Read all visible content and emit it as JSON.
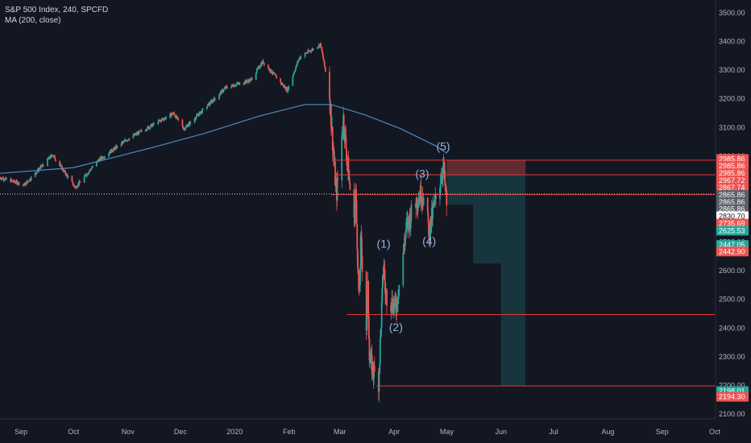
{
  "header": {
    "symbol_line": "S&P 500 Index, 240, SPCFD",
    "indicator_line": "MA (200, close)"
  },
  "chart_data": {
    "type": "candlestick",
    "title": "S&P 500 Index, 240, SPCFD",
    "indicator": "MA (200, close)",
    "x_ticks": [
      "Sep",
      "Oct",
      "Nov",
      "Dec",
      "2020",
      "Feb",
      "Mar",
      "Apr",
      "May",
      "Jun",
      "Jul",
      "Aug",
      "Sep",
      "Oct"
    ],
    "y_ticks": [
      3500,
      3400,
      3300,
      3200,
      3100,
      3000,
      2900,
      2800,
      2700,
      2600,
      2500,
      2400,
      2300,
      2200,
      2100
    ],
    "y_tick_labels": [
      "3500.00",
      "3400.00",
      "3300.00",
      "3200.00",
      "3100.00",
      "3000.00",
      "2900.00",
      "2800.00",
      "2700.00",
      "2600.00",
      "2500.00",
      "2400.00",
      "2300.00",
      "2200.00",
      "2100.00"
    ],
    "ylim": [
      2090,
      3520
    ],
    "price_path_anchors": [
      [
        "2019-08-20",
        2925
      ],
      [
        "2019-09-03",
        2900
      ],
      [
        "2019-09-19",
        3005
      ],
      [
        "2019-10-02",
        2890
      ],
      [
        "2019-10-15",
        2985
      ],
      [
        "2019-11-01",
        3060
      ],
      [
        "2019-11-27",
        3150
      ],
      [
        "2019-12-03",
        3095
      ],
      [
        "2019-12-27",
        3240
      ],
      [
        "2020-01-10",
        3265
      ],
      [
        "2020-01-17",
        3330
      ],
      [
        "2020-01-31",
        3230
      ],
      [
        "2020-02-07",
        3345
      ],
      [
        "2020-02-19",
        3390
      ],
      [
        "2020-02-24",
        3225
      ],
      [
        "2020-02-28",
        2860
      ],
      [
        "2020-03-03",
        3130
      ],
      [
        "2020-03-09",
        2745
      ],
      [
        "2020-03-10",
        2880
      ],
      [
        "2020-03-12",
        2480
      ],
      [
        "2020-03-13",
        2710
      ],
      [
        "2020-03-16",
        2390
      ],
      [
        "2020-03-17",
        2530
      ],
      [
        "2020-03-18",
        2290
      ],
      [
        "2020-03-23",
        2198
      ],
      [
        "2020-03-26",
        2630
      ],
      [
        "2020-03-27",
        2520
      ],
      [
        "2020-04-02",
        2470
      ],
      [
        "2020-04-08",
        2750
      ],
      [
        "2020-04-14",
        2850
      ],
      [
        "2020-04-17",
        2875
      ],
      [
        "2020-04-21",
        2735
      ],
      [
        "2020-04-23",
        2800
      ],
      [
        "2020-04-29",
        2965
      ],
      [
        "2020-05-01",
        2830
      ]
    ],
    "ma200_anchors": [
      [
        "2019-08-20",
        2940
      ],
      [
        "2019-10-01",
        2960
      ],
      [
        "2019-11-15",
        3030
      ],
      [
        "2019-12-15",
        3080
      ],
      [
        "2020-01-15",
        3140
      ],
      [
        "2020-02-10",
        3180
      ],
      [
        "2020-02-25",
        3180
      ],
      [
        "2020-03-15",
        3145
      ],
      [
        "2020-04-05",
        3095
      ],
      [
        "2020-04-25",
        3035
      ],
      [
        "2020-05-01",
        3010
      ]
    ],
    "wave_labels": [
      {
        "text": "(1)",
        "date": "2020-03-26",
        "price": 2680
      },
      {
        "text": "(2)",
        "date": "2020-04-02",
        "price": 2390
      },
      {
        "text": "(3)",
        "date": "2020-04-17",
        "price": 2925
      },
      {
        "text": "(4)",
        "date": "2020-04-21",
        "price": 2690
      },
      {
        "text": "(5)",
        "date": "2020-04-29",
        "price": 3020
      }
    ],
    "horizontal_lines": [
      {
        "price": 2985.86,
        "from": "2020-02-28"
      },
      {
        "price": 2935,
        "from": "2020-02-28"
      },
      {
        "price": 2865.86,
        "from": "2020-02-25"
      },
      {
        "price": 2447.05,
        "from": "2020-03-05"
      },
      {
        "price": 2198.01,
        "from": "2020-03-22"
      }
    ],
    "last_price": 2867.74,
    "risk_zone": {
      "from": "2020-05-01",
      "to": "2020-06-15",
      "top": 2985.86,
      "bottom": 2935
    },
    "reward_zones": [
      {
        "from": "2020-05-01",
        "to": "2020-05-16",
        "top": 2935,
        "bottom": 2830.7
      },
      {
        "from": "2020-05-16",
        "to": "2020-06-01",
        "top": 2935,
        "bottom": 2625.53
      },
      {
        "from": "2020-06-01",
        "to": "2020-06-15",
        "top": 2935,
        "bottom": 2198.01
      }
    ],
    "price_labels": [
      {
        "text": "2985.86",
        "color": "#ef5350",
        "price": 2990
      },
      {
        "text": "2985.86",
        "color": "#ef5350",
        "price": 2966
      },
      {
        "text": "2985.86",
        "color": "#ef5350",
        "price": 2941
      },
      {
        "text": "2967.72",
        "color": "#ef5350",
        "price": 2915
      },
      {
        "text": "2867.74",
        "color": "#ef5350",
        "price": 2890
      },
      {
        "text": "2865.86",
        "color": "#5d606b",
        "price": 2865
      },
      {
        "text": "2865.86",
        "color": "#5d606b",
        "price": 2840
      },
      {
        "text": "2865.86",
        "color": "#5d606b",
        "price": 2815
      },
      {
        "text": "2830.70",
        "color": "#ffffff",
        "price": 2790
      },
      {
        "text": "2735.69",
        "color": "#ef5350",
        "price": 2765
      },
      {
        "text": "2625.53",
        "color": "#26a69a",
        "price": 2740
      },
      {
        "text": "2447.05",
        "color": "#26a69a",
        "price": 2690
      },
      {
        "text": "2442.90",
        "color": "#ef5350",
        "price": 2667
      },
      {
        "text": "2198.01",
        "color": "#26a69a",
        "price": 2180
      },
      {
        "text": "2194.30",
        "color": "#ef5350",
        "price": 2160
      }
    ],
    "colors": {
      "up": "#26a69a",
      "down": "#ef5350",
      "ma": "#4b8bbe",
      "background": "#131722",
      "line": "#e53935"
    }
  }
}
